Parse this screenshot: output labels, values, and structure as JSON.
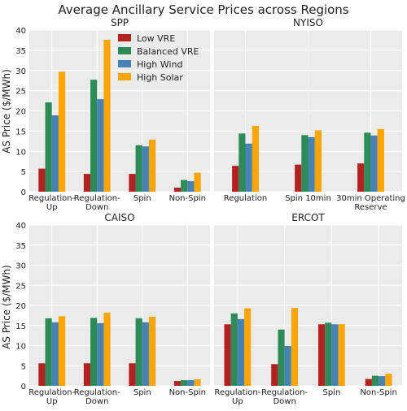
{
  "figure": {
    "title": "Average Ancillary Service Prices across Regions",
    "ylabel": "AS Price ($/MWh)"
  },
  "legend": {
    "placement": "top-left of SPP panel",
    "entries": [
      {
        "name": "Low VRE",
        "color": "#b22222"
      },
      {
        "name": "Balanced VRE",
        "color": "#2e8b57"
      },
      {
        "name": "High Wind",
        "color": "#4682b4"
      },
      {
        "name": "High Solar",
        "color": "#ffa500"
      }
    ]
  },
  "chart_data": [
    {
      "type": "bar",
      "title": "SPP",
      "ylim": [
        0,
        40
      ],
      "yticks": [
        0,
        5,
        10,
        15,
        20,
        25,
        30,
        35,
        40
      ],
      "grid": true,
      "categories": [
        [
          "Regulation-",
          "Up"
        ],
        [
          "Regulation-",
          "Down"
        ],
        [
          "Spin"
        ],
        [
          "Non-Spin"
        ]
      ],
      "series": [
        {
          "name": "Low VRE",
          "values": [
            5.7,
            4.4,
            4.4,
            1.0
          ]
        },
        {
          "name": "Balanced VRE",
          "values": [
            22.1,
            27.7,
            11.5,
            2.9
          ]
        },
        {
          "name": "High Wind",
          "values": [
            18.9,
            22.9,
            11.2,
            2.6
          ]
        },
        {
          "name": "High Solar",
          "values": [
            29.7,
            37.6,
            12.9,
            4.7
          ]
        }
      ]
    },
    {
      "type": "bar",
      "title": "NYISO",
      "ylim": [
        0,
        40
      ],
      "yticks": [
        0,
        5,
        10,
        15,
        20,
        25,
        30,
        35,
        40
      ],
      "grid": true,
      "categories": [
        [
          "Regulation"
        ],
        [
          "Spin 10min"
        ],
        [
          "30min Operating",
          "Reserve"
        ]
      ],
      "series": [
        {
          "name": "Low VRE",
          "values": [
            6.4,
            6.7,
            7.0
          ]
        },
        {
          "name": "Balanced VRE",
          "values": [
            14.4,
            14.0,
            14.6
          ]
        },
        {
          "name": "High Wind",
          "values": [
            11.9,
            13.5,
            13.9
          ]
        },
        {
          "name": "High Solar",
          "values": [
            16.3,
            15.2,
            15.5
          ]
        }
      ]
    },
    {
      "type": "bar",
      "title": "CAISO",
      "ylim": [
        0,
        40
      ],
      "yticks": [
        0,
        5,
        10,
        15,
        20,
        25,
        30,
        35,
        40
      ],
      "grid": true,
      "categories": [
        [
          "Regulation-",
          "Up"
        ],
        [
          "Regulation-",
          "Down"
        ],
        [
          "Spin"
        ],
        [
          "Non-Spin"
        ]
      ],
      "series": [
        {
          "name": "Low VRE",
          "values": [
            5.6,
            5.6,
            5.6,
            1.2
          ]
        },
        {
          "name": "Balanced VRE",
          "values": [
            16.8,
            16.9,
            16.8,
            1.4
          ]
        },
        {
          "name": "High Wind",
          "values": [
            15.8,
            15.6,
            15.8,
            1.4
          ]
        },
        {
          "name": "High Solar",
          "values": [
            17.3,
            18.2,
            17.2,
            1.6
          ]
        }
      ]
    },
    {
      "type": "bar",
      "title": "ERCOT",
      "ylim": [
        0,
        40
      ],
      "yticks": [
        0,
        5,
        10,
        15,
        20,
        25,
        30,
        35,
        40
      ],
      "grid": true,
      "categories": [
        [
          "Regulation-",
          "Up"
        ],
        [
          "Regulation-",
          "Down"
        ],
        [
          "Spin"
        ],
        [
          "Non-Spin"
        ]
      ],
      "series": [
        {
          "name": "Low VRE",
          "values": [
            15.3,
            5.4,
            15.3,
            1.7
          ]
        },
        {
          "name": "Balanced VRE",
          "values": [
            18.0,
            14.0,
            15.7,
            2.5
          ]
        },
        {
          "name": "High Wind",
          "values": [
            16.6,
            9.9,
            15.3,
            2.4
          ]
        },
        {
          "name": "High Solar",
          "values": [
            19.3,
            19.4,
            15.3,
            3.0
          ]
        }
      ]
    }
  ]
}
